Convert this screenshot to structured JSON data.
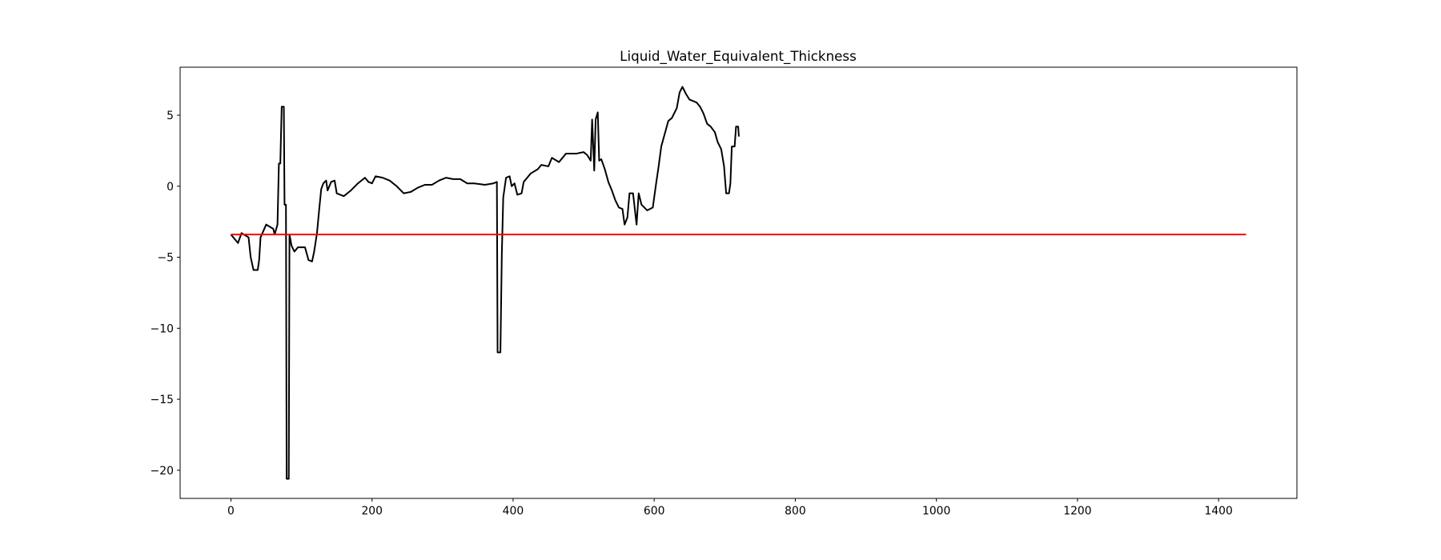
{
  "chart_data": {
    "type": "line",
    "title": "Liquid_Water_Equivalent_Thickness",
    "xlim": [
      -72,
      1511
    ],
    "ylim": [
      -21.98,
      8.38
    ],
    "xticks": [
      0,
      200,
      400,
      600,
      800,
      1000,
      1200,
      1400
    ],
    "yticks": [
      {
        "value": -20,
        "label": "−20"
      },
      {
        "value": -15,
        "label": "−15"
      },
      {
        "value": -10,
        "label": "−10"
      },
      {
        "value": -5,
        "label": "−5"
      },
      0,
      5
    ],
    "series": [
      {
        "color": "#000000",
        "x": [
          0,
          10,
          15,
          25,
          28,
          32,
          38,
          40,
          42,
          50,
          60,
          62,
          66,
          68,
          70,
          72,
          75,
          76,
          78,
          79,
          82,
          83,
          86,
          90,
          95,
          105,
          110,
          115,
          118,
          122,
          125,
          128,
          131,
          135,
          137,
          142,
          147,
          150,
          160,
          170,
          180,
          190,
          195,
          200,
          205,
          215,
          225,
          235,
          245,
          255,
          265,
          275,
          285,
          295,
          305,
          315,
          325,
          335,
          345,
          360,
          372,
          377,
          378,
          382,
          384,
          386,
          390,
          395,
          398,
          402,
          406,
          412,
          415,
          425,
          435,
          440,
          450,
          455,
          465,
          475,
          490,
          500,
          505,
          510,
          512,
          515,
          517,
          520,
          522,
          525,
          530,
          535,
          540,
          545,
          550,
          555,
          558,
          562,
          565,
          570,
          575,
          578,
          582,
          590,
          598,
          603,
          606,
          610,
          615,
          620,
          625,
          632,
          636,
          640,
          645,
          650,
          660,
          665,
          670,
          675,
          680,
          686,
          690,
          695,
          699,
          702,
          706,
          708,
          710,
          714,
          716,
          719,
          720
        ],
        "values": [
          -3.4,
          -4,
          -3.3,
          -3.6,
          -5,
          -5.9,
          -5.9,
          -5.2,
          -3.6,
          -2.7,
          -3,
          -3.4,
          -2.7,
          1.6,
          1.6,
          5.6,
          5.6,
          -1.3,
          -1.3,
          -20.6,
          -20.6,
          -3.4,
          -4.2,
          -4.6,
          -4.3,
          -4.3,
          -5.2,
          -5.3,
          -4.6,
          -3.3,
          -1.7,
          -0.2,
          0.2,
          0.4,
          -0.3,
          0.3,
          0.4,
          -0.5,
          -0.7,
          -0.3,
          0.2,
          0.6,
          0.3,
          0.2,
          0.7,
          0.6,
          0.4,
          0,
          -0.5,
          -0.4,
          -0.1,
          0.1,
          0.1,
          0.4,
          0.6,
          0.5,
          0.5,
          0.2,
          0.2,
          0.1,
          0.2,
          0.3,
          -11.7,
          -11.7,
          -4.8,
          -0.8,
          0.6,
          0.7,
          0,
          0.2,
          -0.6,
          -0.5,
          0.3,
          0.9,
          1.2,
          1.5,
          1.4,
          2,
          1.7,
          2.3,
          2.3,
          2.4,
          2.2,
          1.8,
          4.7,
          1.1,
          4.7,
          5.2,
          1.8,
          1.9,
          1.2,
          0.3,
          -0.3,
          -1,
          -1.5,
          -1.6,
          -2.7,
          -2.2,
          -0.5,
          -0.5,
          -2.7,
          -0.5,
          -1.3,
          -1.7,
          -1.5,
          0.3,
          1.3,
          2.8,
          3.7,
          4.6,
          4.8,
          5.5,
          6.6,
          7,
          6.5,
          6.1,
          5.9,
          5.6,
          5.1,
          4.4,
          4.2,
          3.8,
          3.1,
          2.6,
          1.4,
          -0.5,
          -0.5,
          0.2,
          2.8,
          2.8,
          4.2,
          4.2,
          3.5
        ]
      },
      {
        "color": "#ff0000",
        "x": [
          0,
          1439
        ],
        "values": [
          -3.4,
          -3.4
        ]
      }
    ]
  }
}
